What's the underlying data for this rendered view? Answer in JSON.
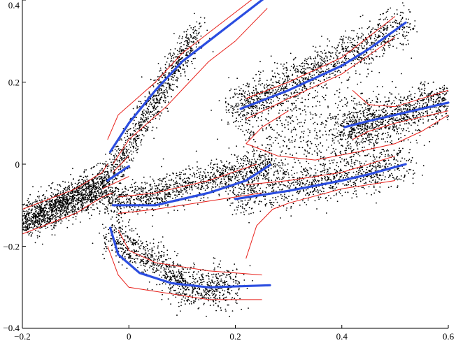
{
  "chart_data": {
    "type": "scatter",
    "title": "",
    "xlabel": "",
    "ylabel": "",
    "xlim": [
      -0.2,
      0.6
    ],
    "ylim": [
      -0.4,
      0.4
    ],
    "grid": false,
    "x_ticks": [
      -0.2,
      0,
      0.2,
      0.4,
      0.6
    ],
    "y_ticks": [
      -0.4,
      -0.2,
      0,
      0.2,
      0.4
    ],
    "x_tick_labels": [
      "−0.2",
      "0",
      "0.2",
      "0.4",
      "0.6"
    ],
    "y_tick_labels": [
      "−0.4",
      "−0.2",
      "0",
      "0.2",
      "0.4"
    ],
    "colors": {
      "points": "#000000",
      "principal_curves": "#2b4de0",
      "bands": "#e8201a"
    },
    "point_clusters": [
      {
        "segment": [
          [
            -0.2,
            -0.14
          ],
          [
            -0.04,
            -0.05
          ]
        ],
        "spread": 0.022,
        "count": 1500
      },
      {
        "segment": [
          [
            -0.04,
            -0.04
          ],
          [
            0.13,
            0.33
          ]
        ],
        "spread": 0.018,
        "count": 900
      },
      {
        "segment": [
          [
            -0.04,
            -0.1
          ],
          [
            0.27,
            0.0
          ]
        ],
        "spread": 0.02,
        "count": 1100
      },
      {
        "segment": [
          [
            0.2,
            0.13
          ],
          [
            0.52,
            0.34
          ]
        ],
        "spread": 0.025,
        "count": 1200
      },
      {
        "segment": [
          [
            0.2,
            -0.08
          ],
          [
            0.52,
            0.0
          ]
        ],
        "spread": 0.025,
        "count": 900
      },
      {
        "segment": [
          [
            0.4,
            0.08
          ],
          [
            0.6,
            0.16
          ]
        ],
        "spread": 0.025,
        "count": 900
      },
      {
        "segment": [
          [
            0.22,
            0.08
          ],
          [
            0.5,
            0.08
          ]
        ],
        "spread": 0.06,
        "count": 700
      },
      {
        "segment": [
          [
            -0.04,
            -0.17
          ],
          [
            0.1,
            -0.28
          ]
        ],
        "spread": 0.022,
        "count": 500
      },
      {
        "segment": [
          [
            0.08,
            -0.3
          ],
          [
            0.2,
            -0.3
          ]
        ],
        "spread": 0.025,
        "count": 500
      }
    ],
    "principal_curves": [
      {
        "name": "upper-left-branch",
        "points": [
          [
            -0.035,
            0.03
          ],
          [
            0.0,
            0.1
          ],
          [
            0.05,
            0.18
          ],
          [
            0.1,
            0.25
          ],
          [
            0.15,
            0.3
          ],
          [
            0.2,
            0.35
          ],
          [
            0.265,
            0.415
          ]
        ]
      },
      {
        "name": "left-stub",
        "points": [
          [
            -0.04,
            -0.04
          ],
          [
            0.0,
            -0.005
          ]
        ]
      },
      {
        "name": "middle-branch",
        "points": [
          [
            -0.03,
            -0.1
          ],
          [
            0.05,
            -0.1
          ],
          [
            0.15,
            -0.07
          ],
          [
            0.22,
            -0.04
          ],
          [
            0.265,
            -0.002
          ]
        ]
      },
      {
        "name": "lower-branch",
        "points": [
          [
            -0.035,
            -0.155
          ],
          [
            -0.02,
            -0.22
          ],
          [
            0.02,
            -0.265
          ],
          [
            0.08,
            -0.29
          ],
          [
            0.15,
            -0.3
          ],
          [
            0.265,
            -0.295
          ]
        ]
      },
      {
        "name": "upper-right-branch",
        "points": [
          [
            0.21,
            0.135
          ],
          [
            0.3,
            0.18
          ],
          [
            0.4,
            0.24
          ],
          [
            0.45,
            0.28
          ],
          [
            0.52,
            0.345
          ]
        ]
      },
      {
        "name": "lower-right-branch",
        "points": [
          [
            0.2,
            -0.085
          ],
          [
            0.3,
            -0.065
          ],
          [
            0.4,
            -0.04
          ],
          [
            0.45,
            -0.025
          ],
          [
            0.52,
            0.0
          ]
        ]
      },
      {
        "name": "far-right-branch",
        "points": [
          [
            0.405,
            0.09
          ],
          [
            0.45,
            0.105
          ],
          [
            0.5,
            0.12
          ],
          [
            0.55,
            0.135
          ],
          [
            0.6,
            0.15
          ]
        ]
      }
    ],
    "confidence_bands": [
      {
        "points": [
          [
            -0.2,
            -0.11
          ],
          [
            -0.1,
            -0.06
          ],
          [
            -0.05,
            -0.02
          ],
          [
            -0.04,
            0.0
          ]
        ]
      },
      {
        "points": [
          [
            -0.2,
            -0.17
          ],
          [
            -0.1,
            -0.12
          ],
          [
            -0.05,
            -0.08
          ],
          [
            -0.03,
            -0.07
          ]
        ]
      },
      {
        "points": [
          [
            -0.04,
            0.06
          ],
          [
            -0.02,
            0.12
          ],
          [
            0.05,
            0.2
          ],
          [
            0.1,
            0.27
          ],
          [
            0.15,
            0.32
          ],
          [
            0.25,
            0.42
          ]
        ]
      },
      {
        "points": [
          [
            -0.03,
            0.0
          ],
          [
            0.0,
            0.06
          ],
          [
            0.07,
            0.14
          ],
          [
            0.15,
            0.25
          ],
          [
            0.2,
            0.3
          ],
          [
            0.26,
            0.38
          ]
        ]
      },
      {
        "points": [
          [
            -0.03,
            -0.02
          ],
          [
            0.0,
            0.02
          ]
        ]
      },
      {
        "points": [
          [
            -0.05,
            -0.06
          ],
          [
            0.0,
            -0.03
          ]
        ]
      },
      {
        "points": [
          [
            -0.02,
            -0.08
          ],
          [
            0.05,
            -0.07
          ],
          [
            0.15,
            -0.04
          ],
          [
            0.24,
            0.0
          ]
        ]
      },
      {
        "points": [
          [
            -0.02,
            -0.12
          ],
          [
            0.05,
            -0.11
          ],
          [
            0.15,
            -0.09
          ],
          [
            0.2,
            -0.08
          ],
          [
            0.25,
            -0.07
          ]
        ]
      },
      {
        "points": [
          [
            -0.02,
            -0.16
          ],
          [
            0.0,
            -0.21
          ],
          [
            0.05,
            -0.24
          ],
          [
            0.15,
            -0.26
          ],
          [
            0.25,
            -0.27
          ]
        ]
      },
      {
        "points": [
          [
            -0.04,
            -0.2
          ],
          [
            -0.02,
            -0.27
          ],
          [
            0.0,
            -0.3
          ],
          [
            0.05,
            -0.31
          ],
          [
            0.15,
            -0.33
          ],
          [
            0.25,
            -0.33
          ]
        ]
      },
      {
        "points": [
          [
            0.22,
            0.16
          ],
          [
            0.3,
            0.2
          ],
          [
            0.4,
            0.26
          ],
          [
            0.5,
            0.36
          ]
        ]
      },
      {
        "points": [
          [
            0.22,
            0.11
          ],
          [
            0.3,
            0.16
          ],
          [
            0.4,
            0.22
          ],
          [
            0.5,
            0.31
          ]
        ]
      },
      {
        "points": [
          [
            0.22,
            -0.23
          ],
          [
            0.24,
            -0.15
          ],
          [
            0.27,
            -0.11
          ],
          [
            0.3,
            -0.095
          ],
          [
            0.4,
            -0.06
          ],
          [
            0.5,
            -0.04
          ]
        ]
      },
      {
        "points": [
          [
            0.22,
            -0.05
          ],
          [
            0.3,
            -0.04
          ],
          [
            0.4,
            -0.02
          ],
          [
            0.5,
            0.02
          ]
        ]
      },
      {
        "points": [
          [
            0.42,
            0.18
          ],
          [
            0.45,
            0.145
          ],
          [
            0.5,
            0.14
          ],
          [
            0.6,
            0.18
          ]
        ]
      },
      {
        "points": [
          [
            0.42,
            0.06
          ],
          [
            0.45,
            0.08
          ],
          [
            0.5,
            0.1
          ],
          [
            0.6,
            0.13
          ]
        ]
      },
      {
        "points": [
          [
            0.22,
            0.05
          ],
          [
            0.28,
            0.02
          ],
          [
            0.35,
            0.01
          ],
          [
            0.43,
            0.03
          ],
          [
            0.5,
            0.05
          ],
          [
            0.55,
            0.08
          ],
          [
            0.6,
            0.12
          ]
        ]
      },
      {
        "points": [
          [
            0.3,
            0.13
          ],
          [
            0.25,
            0.09
          ],
          [
            0.22,
            0.05
          ]
        ]
      }
    ]
  }
}
